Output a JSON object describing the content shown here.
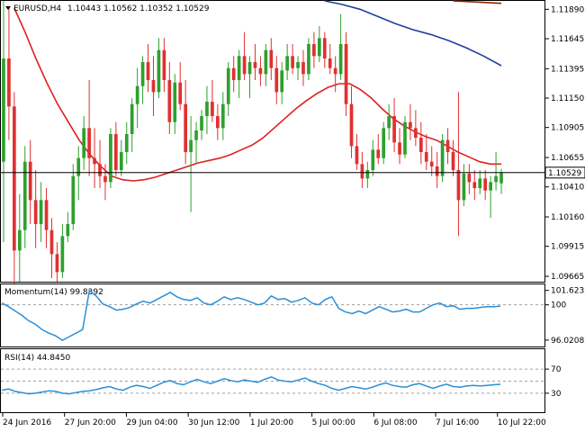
{
  "header": {
    "symbol_label": "EURUSD,H4",
    "ohlc": "1.10443 1.10562 1.10352 1.10529"
  },
  "colors": {
    "bull": "#2ea02e",
    "bear": "#e03030",
    "wick": "#000000",
    "sma_fast": "#e02020",
    "sma_slow": "#1f3fa0",
    "sma_long": "#8b2500",
    "indicator": "#2a8fd8",
    "level_line": "#a0a0a0"
  },
  "chart_data": [
    {
      "type": "candlestick",
      "panel": "price",
      "title": "EURUSD,H4 1.10443 1.10562 1.10352 1.10529",
      "current_price": "1.10529",
      "y_ticks": [
        "1.11890",
        "1.11645",
        "1.11395",
        "1.11150",
        "1.10905",
        "1.10655",
        "1.10410",
        "1.10160",
        "1.09915",
        "1.09665"
      ],
      "ylim": [
        1.0962,
        1.1196
      ],
      "x_ticks": [
        "24 Jun 2016",
        "27 Jun 20:00",
        "29 Jun 04:00",
        "30 Jun 12:00",
        "1 Jul 20:00",
        "5 Jul 00:00",
        "6 Jul 08:00",
        "7 Jul 16:00",
        "10 Jul 22:00"
      ],
      "candles": [
        [
          1.1062,
          1.1196,
          1.0995,
          1.1148
        ],
        [
          1.1148,
          1.119,
          1.108,
          1.1108
        ],
        [
          1.1108,
          1.112,
          1.096,
          1.0988
        ],
        [
          1.0988,
          1.1035,
          1.0962,
          1.1005
        ],
        [
          1.1005,
          1.1075,
          1.099,
          1.1062
        ],
        [
          1.1062,
          1.108,
          1.101,
          1.103
        ],
        [
          1.103,
          1.1055,
          1.099,
          1.101
        ],
        [
          1.101,
          1.1045,
          1.0995,
          1.103
        ],
        [
          1.103,
          1.104,
          1.099,
          1.1005
        ],
        [
          1.1005,
          1.1015,
          1.0965,
          1.0985
        ],
        [
          1.0985,
          1.0995,
          1.0962,
          1.097
        ],
        [
          1.097,
          1.101,
          1.0965,
          1.1
        ],
        [
          1.1,
          1.102,
          1.0995,
          1.101
        ],
        [
          1.101,
          1.106,
          1.1005,
          1.105
        ],
        [
          1.105,
          1.1075,
          1.103,
          1.1065
        ],
        [
          1.1065,
          1.11,
          1.1055,
          1.109
        ],
        [
          1.109,
          1.113,
          1.105,
          1.1065
        ],
        [
          1.1065,
          1.109,
          1.104,
          1.106
        ],
        [
          1.106,
          1.108,
          1.104,
          1.105
        ],
        [
          1.105,
          1.106,
          1.103,
          1.1045
        ],
        [
          1.1045,
          1.109,
          1.104,
          1.1085
        ],
        [
          1.1085,
          1.1095,
          1.105,
          1.1055
        ],
        [
          1.1055,
          1.108,
          1.105,
          1.107
        ],
        [
          1.107,
          1.1095,
          1.106,
          1.1085
        ],
        [
          1.1085,
          1.1115,
          1.107,
          1.111
        ],
        [
          1.111,
          1.114,
          1.109,
          1.1125
        ],
        [
          1.1125,
          1.115,
          1.111,
          1.1145
        ],
        [
          1.1145,
          1.116,
          1.112,
          1.113
        ],
        [
          1.113,
          1.115,
          1.11,
          1.112
        ],
        [
          1.112,
          1.1165,
          1.1115,
          1.1155
        ],
        [
          1.1155,
          1.1165,
          1.112,
          1.113
        ],
        [
          1.113,
          1.1145,
          1.1085,
          1.1095
        ],
        [
          1.1095,
          1.1135,
          1.1085,
          1.1128
        ],
        [
          1.1128,
          1.1145,
          1.1105,
          1.111
        ],
        [
          1.111,
          1.113,
          1.106,
          1.107
        ],
        [
          1.107,
          1.11,
          1.102,
          1.108
        ],
        [
          1.108,
          1.1095,
          1.106,
          1.1088
        ],
        [
          1.1088,
          1.1105,
          1.108,
          1.11
        ],
        [
          1.11,
          1.1125,
          1.1085,
          1.1112
        ],
        [
          1.1112,
          1.113,
          1.1095,
          1.11
        ],
        [
          1.11,
          1.111,
          1.108,
          1.109
        ],
        [
          1.109,
          1.112,
          1.108,
          1.111
        ],
        [
          1.111,
          1.1145,
          1.11,
          1.114
        ],
        [
          1.114,
          1.115,
          1.112,
          1.113
        ],
        [
          1.113,
          1.1155,
          1.1115,
          1.115
        ],
        [
          1.115,
          1.117,
          1.113,
          1.1135
        ],
        [
          1.1135,
          1.115,
          1.1115,
          1.1145
        ],
        [
          1.1145,
          1.116,
          1.113,
          1.114
        ],
        [
          1.114,
          1.115,
          1.1125,
          1.1135
        ],
        [
          1.1135,
          1.116,
          1.1125,
          1.1155
        ],
        [
          1.1155,
          1.1165,
          1.113,
          1.114
        ],
        [
          1.114,
          1.115,
          1.111,
          1.112
        ],
        [
          1.112,
          1.1145,
          1.111,
          1.1138
        ],
        [
          1.1138,
          1.116,
          1.113,
          1.115
        ],
        [
          1.115,
          1.116,
          1.1135,
          1.114
        ],
        [
          1.114,
          1.115,
          1.113,
          1.1145
        ],
        [
          1.1145,
          1.1155,
          1.1125,
          1.1135
        ],
        [
          1.1135,
          1.1165,
          1.113,
          1.116
        ],
        [
          1.116,
          1.117,
          1.114,
          1.115
        ],
        [
          1.115,
          1.1175,
          1.1145,
          1.1165
        ],
        [
          1.1165,
          1.117,
          1.114,
          1.1148
        ],
        [
          1.1148,
          1.116,
          1.1135,
          1.114
        ],
        [
          1.114,
          1.115,
          1.112,
          1.1135
        ],
        [
          1.1135,
          1.1185,
          1.113,
          1.116
        ],
        [
          1.116,
          1.117,
          1.11,
          1.111
        ],
        [
          1.111,
          1.1125,
          1.1065,
          1.1075
        ],
        [
          1.1075,
          1.1085,
          1.1055,
          1.106
        ],
        [
          1.106,
          1.107,
          1.104,
          1.1048
        ],
        [
          1.1048,
          1.1062,
          1.104,
          1.1055
        ],
        [
          1.1055,
          1.108,
          1.105,
          1.1072
        ],
        [
          1.1072,
          1.1085,
          1.106,
          1.1065
        ],
        [
          1.1065,
          1.1095,
          1.106,
          1.109
        ],
        [
          1.109,
          1.111,
          1.108,
          1.11
        ],
        [
          1.11,
          1.1115,
          1.107,
          1.1078
        ],
        [
          1.1078,
          1.109,
          1.106,
          1.1068
        ],
        [
          1.1068,
          1.11,
          1.1065,
          1.1095
        ],
        [
          1.1095,
          1.111,
          1.108,
          1.109
        ],
        [
          1.109,
          1.1105,
          1.1075,
          1.1082
        ],
        [
          1.1082,
          1.1095,
          1.106,
          1.107
        ],
        [
          1.107,
          1.1085,
          1.1055,
          1.1062
        ],
        [
          1.1062,
          1.1075,
          1.105,
          1.1058
        ],
        [
          1.1058,
          1.107,
          1.104,
          1.105
        ],
        [
          1.105,
          1.1085,
          1.1045,
          1.108
        ],
        [
          1.108,
          1.109,
          1.106,
          1.107
        ],
        [
          1.107,
          1.108,
          1.105,
          1.1055
        ],
        [
          1.1055,
          1.112,
          1.1,
          1.103
        ],
        [
          1.103,
          1.106,
          1.1025,
          1.1052
        ],
        [
          1.1052,
          1.106,
          1.1035,
          1.1045
        ],
        [
          1.1045,
          1.1055,
          1.103,
          1.104
        ],
        [
          1.104,
          1.1055,
          1.1035,
          1.1048
        ],
        [
          1.1048,
          1.1055,
          1.103,
          1.1038
        ],
        [
          1.1038,
          1.105,
          1.1015,
          1.1045
        ],
        [
          1.1045,
          1.107,
          1.1038,
          1.105
        ],
        [
          1.1044,
          1.1056,
          1.1035,
          1.1053
        ]
      ],
      "sma_fast": [
        1.119,
        1.117,
        1.1148,
        1.1128,
        1.111,
        1.1095,
        1.108,
        1.1068,
        1.1058,
        1.105,
        1.1047,
        1.1046,
        1.1047,
        1.1049,
        1.1052,
        1.1055,
        1.1058,
        1.1061,
        1.1063,
        1.1065,
        1.1068,
        1.1072,
        1.1076,
        1.1082,
        1.109,
        1.1098,
        1.1106,
        1.1113,
        1.1119,
        1.1124,
        1.1127,
        1.1127,
        1.1122,
        1.1115,
        1.1106,
        1.1098,
        1.1092,
        1.1087,
        1.1083,
        1.108,
        1.1075,
        1.107,
        1.1066,
        1.1062,
        1.106,
        1.106
      ],
      "sma_slow": [
        1.1196,
        1.1193,
        1.1189,
        1.1183,
        1.1177,
        1.1172,
        1.1168,
        1.1163,
        1.1157,
        1.115,
        1.1142
      ],
      "sma_long": [
        1.1196,
        1.1195,
        1.1194
      ]
    },
    {
      "type": "line",
      "panel": "momentum",
      "title": "Momentum(14) 99.8392",
      "y_ticks": [
        "101.6235",
        "100",
        "96.0208"
      ],
      "ylim": [
        95.4,
        102.1
      ],
      "level": 100,
      "series": [
        {
          "name": "Momentum(14)",
          "values": [
            100.2,
            99.8,
            99.3,
            98.8,
            98.2,
            97.8,
            97.2,
            96.8,
            96.5,
            96.0,
            96.4,
            96.8,
            97.2,
            101.6,
            101.0,
            100.1,
            99.8,
            99.4,
            99.5,
            99.7,
            100.1,
            100.4,
            100.2,
            100.6,
            101.0,
            101.4,
            100.9,
            100.6,
            100.5,
            100.8,
            100.2,
            100.0,
            100.4,
            100.9,
            100.6,
            100.8,
            100.6,
            100.3,
            100.0,
            100.2,
            101.0,
            100.6,
            100.7,
            100.3,
            100.5,
            100.8,
            100.2,
            100.0,
            100.6,
            100.9,
            99.6,
            99.2,
            99.0,
            99.3,
            99.0,
            99.4,
            99.8,
            99.5,
            99.2,
            99.3,
            99.5,
            99.2,
            99.2,
            99.6,
            100.0,
            100.2,
            99.8,
            99.9,
            99.5,
            99.6,
            99.6,
            99.7,
            99.8,
            99.8,
            99.84
          ]
        }
      ]
    },
    {
      "type": "line",
      "panel": "rsi",
      "title": "RSI(14) 44.8450",
      "y_ticks": [
        "70",
        "30"
      ],
      "ylim": [
        0,
        100
      ],
      "levels": [
        70,
        50,
        30
      ],
      "series": [
        {
          "name": "RSI(14)",
          "values": [
            35,
            37,
            33,
            31,
            29,
            30,
            32,
            34,
            33,
            30,
            29,
            31,
            33,
            34,
            36,
            39,
            41,
            37,
            35,
            40,
            43,
            41,
            38,
            43,
            48,
            51,
            46,
            44,
            49,
            53,
            49,
            46,
            50,
            54,
            51,
            49,
            52,
            50,
            48,
            53,
            57,
            52,
            50,
            49,
            52,
            55,
            50,
            46,
            43,
            38,
            35,
            38,
            41,
            39,
            37,
            40,
            44,
            47,
            43,
            41,
            40,
            44,
            46,
            42,
            38,
            42,
            45,
            41,
            40,
            42,
            43,
            42,
            43,
            44,
            44.85
          ]
        }
      ]
    }
  ]
}
